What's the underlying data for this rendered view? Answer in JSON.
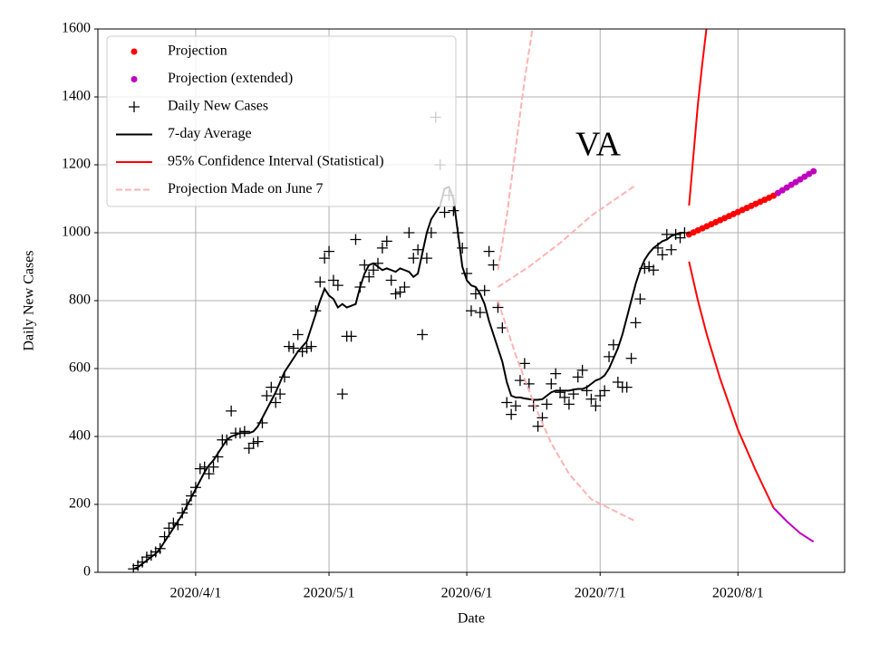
{
  "chart_data": {
    "type": "line",
    "title": "VA",
    "x_label": "Date",
    "y_label": "Daily New Cases",
    "xlim": [
      "2020-03-10",
      "2020-08-25"
    ],
    "ylim": [
      0,
      1600
    ],
    "xticks": [
      {
        "value": "2020-04-01",
        "label": "2020/4/1"
      },
      {
        "value": "2020-05-01",
        "label": "2020/5/1"
      },
      {
        "value": "2020-06-01",
        "label": "2020/6/1"
      },
      {
        "value": "2020-07-01",
        "label": "2020/7/1"
      },
      {
        "value": "2020-08-01",
        "label": "2020/8/1"
      }
    ],
    "yticks": [
      0,
      200,
      400,
      600,
      800,
      1000,
      1200,
      1400,
      1600
    ],
    "grid": true,
    "legend": "upper left",
    "x": [
      "2020-03-18",
      "2020-03-19",
      "2020-03-20",
      "2020-03-21",
      "2020-03-22",
      "2020-03-23",
      "2020-03-24",
      "2020-03-25",
      "2020-03-26",
      "2020-03-27",
      "2020-03-28",
      "2020-03-29",
      "2020-03-30",
      "2020-03-31",
      "2020-04-01",
      "2020-04-02",
      "2020-04-03",
      "2020-04-04",
      "2020-04-05",
      "2020-04-06",
      "2020-04-07",
      "2020-04-08",
      "2020-04-09",
      "2020-04-10",
      "2020-04-11",
      "2020-04-12",
      "2020-04-13",
      "2020-04-14",
      "2020-04-15",
      "2020-04-16",
      "2020-04-17",
      "2020-04-18",
      "2020-04-19",
      "2020-04-20",
      "2020-04-21",
      "2020-04-22",
      "2020-04-23",
      "2020-04-24",
      "2020-04-25",
      "2020-04-26",
      "2020-04-27",
      "2020-04-28",
      "2020-04-29",
      "2020-04-30",
      "2020-05-01",
      "2020-05-02",
      "2020-05-03",
      "2020-05-04",
      "2020-05-05",
      "2020-05-06",
      "2020-05-07",
      "2020-05-08",
      "2020-05-09",
      "2020-05-10",
      "2020-05-11",
      "2020-05-12",
      "2020-05-13",
      "2020-05-14",
      "2020-05-15",
      "2020-05-16",
      "2020-05-17",
      "2020-05-18",
      "2020-05-19",
      "2020-05-20",
      "2020-05-21",
      "2020-05-22",
      "2020-05-23",
      "2020-05-24",
      "2020-05-25",
      "2020-05-26",
      "2020-05-27",
      "2020-05-28",
      "2020-05-29",
      "2020-05-30",
      "2020-05-31",
      "2020-06-01",
      "2020-06-02",
      "2020-06-03",
      "2020-06-04",
      "2020-06-05",
      "2020-06-06",
      "2020-06-07",
      "2020-06-08",
      "2020-06-09",
      "2020-06-10",
      "2020-06-11",
      "2020-06-12",
      "2020-06-13",
      "2020-06-14",
      "2020-06-15",
      "2020-06-16",
      "2020-06-17",
      "2020-06-18",
      "2020-06-19",
      "2020-06-20",
      "2020-06-21",
      "2020-06-22",
      "2020-06-23",
      "2020-06-24",
      "2020-06-25",
      "2020-06-26",
      "2020-06-27",
      "2020-06-28",
      "2020-06-29",
      "2020-06-30",
      "2020-07-01",
      "2020-07-02",
      "2020-07-03",
      "2020-07-04",
      "2020-07-05",
      "2020-07-06",
      "2020-07-07",
      "2020-07-08",
      "2020-07-09",
      "2020-07-10",
      "2020-07-11",
      "2020-07-12",
      "2020-07-13",
      "2020-07-14",
      "2020-07-15",
      "2020-07-16",
      "2020-07-17",
      "2020-07-18",
      "2020-07-19",
      "2020-07-20"
    ],
    "series": [
      {
        "name": "Projection",
        "color": "#ff0000",
        "marker": "dot",
        "x": [
          "2020-07-21",
          "2020-07-22",
          "2020-07-23",
          "2020-07-24",
          "2020-07-25",
          "2020-07-26",
          "2020-07-27",
          "2020-07-28",
          "2020-07-29",
          "2020-07-30",
          "2020-07-31",
          "2020-08-01",
          "2020-08-02",
          "2020-08-03",
          "2020-08-04",
          "2020-08-05",
          "2020-08-06",
          "2020-08-07",
          "2020-08-08",
          "2020-08-09"
        ],
        "values": [
          995,
          1001,
          1007,
          1013,
          1019,
          1025,
          1031,
          1037,
          1043,
          1049,
          1055,
          1061,
          1067,
          1073,
          1079,
          1085,
          1091,
          1097,
          1103,
          1109
        ]
      },
      {
        "name": "Projection (extended)",
        "color": "#bf00bf",
        "marker": "dot",
        "x": [
          "2020-08-10",
          "2020-08-11",
          "2020-08-12",
          "2020-08-13",
          "2020-08-14",
          "2020-08-15",
          "2020-08-16",
          "2020-08-17",
          "2020-08-18"
        ],
        "values": [
          1117,
          1125,
          1133,
          1141,
          1149,
          1157,
          1165,
          1173,
          1181
        ]
      },
      {
        "name": "Daily New Cases",
        "color": "#000000",
        "marker": "plus",
        "values": [
          10,
          20,
          30,
          45,
          50,
          60,
          70,
          105,
          130,
          145,
          140,
          175,
          200,
          225,
          250,
          305,
          310,
          290,
          310,
          340,
          390,
          390,
          475,
          410,
          410,
          415,
          365,
          380,
          385,
          440,
          520,
          545,
          500,
          525,
          575,
          665,
          660,
          700,
          650,
          660,
          665,
          770,
          855,
          925,
          945,
          860,
          845,
          525,
          695,
          695,
          980,
          840,
          905,
          870,
          890,
          910,
          955,
          975,
          860,
          820,
          825,
          840,
          1000,
          925,
          950,
          700,
          925,
          1000,
          1340,
          1200,
          1060,
          1110,
          1065,
          1000,
          955,
          880,
          770,
          820,
          765,
          830,
          945,
          905,
          780,
          720,
          500,
          465,
          490,
          565,
          615,
          555,
          490,
          430,
          455,
          495,
          555,
          585,
          530,
          515,
          495,
          525,
          575,
          595,
          535,
          510,
          490,
          520,
          535,
          635,
          670,
          560,
          545,
          545,
          630,
          735,
          805,
          895,
          900,
          890,
          955,
          935,
          995,
          950,
          995,
          985,
          1000
        ]
      },
      {
        "name": "7-day Average",
        "color": "#000000",
        "marker": "line",
        "values": [
          10,
          15,
          25,
          35,
          45,
          55,
          70,
          90,
          110,
          130,
          150,
          170,
          195,
          220,
          245,
          270,
          295,
          315,
          330,
          350,
          370,
          390,
          400,
          405,
          410,
          410,
          410,
          415,
          430,
          455,
          480,
          505,
          530,
          560,
          590,
          610,
          630,
          650,
          665,
          680,
          720,
          760,
          800,
          835,
          815,
          805,
          780,
          790,
          780,
          785,
          790,
          840,
          880,
          905,
          910,
          900,
          890,
          895,
          890,
          885,
          895,
          890,
          885,
          870,
          880,
          940,
          1000,
          1040,
          1060,
          1080,
          1130,
          1135,
          1100,
          1000,
          900,
          860,
          845,
          840,
          820,
          790,
          740,
          700,
          660,
          620,
          560,
          520,
          515,
          515,
          512,
          510,
          508,
          508,
          510,
          520,
          530,
          535,
          535,
          535,
          535,
          538,
          540,
          540,
          545,
          555,
          565,
          570,
          580,
          600,
          630,
          660,
          700,
          750,
          800,
          850,
          890,
          920,
          940,
          955,
          965,
          975,
          980,
          990,
          995,
          1000,
          1000
        ]
      },
      {
        "name": "95% Confidence Interval (Statistical)",
        "color": "#ff0000",
        "marker": "line",
        "x": [
          "2020-07-21",
          "2020-07-22",
          "2020-07-23",
          "2020-07-24",
          "2020-07-25",
          null,
          "2020-07-21",
          "2020-07-23",
          "2020-07-25",
          "2020-07-28",
          "2020-08-01",
          "2020-08-05",
          "2020-08-09"
        ],
        "values": [
          1080,
          1230,
          1380,
          1500,
          1610,
          null,
          915,
          800,
          700,
          570,
          420,
          300,
          190
        ]
      },
      {
        "color": "#bf00bf",
        "marker": "line",
        "x": [
          "2020-08-09",
          "2020-08-12",
          "2020-08-15",
          "2020-08-18"
        ],
        "values": [
          190,
          150,
          115,
          90
        ]
      },
      {
        "name": "Projection Made on June 7",
        "color": "#ffb3b3",
        "marker": "dashed",
        "x": [
          "2020-06-08",
          "2020-06-10",
          "2020-06-12",
          "2020-06-14",
          "2020-06-16",
          null,
          "2020-06-08",
          "2020-06-15",
          "2020-06-22",
          "2020-06-29",
          "2020-07-09",
          null,
          "2020-06-08",
          "2020-06-12",
          "2020-06-16",
          "2020-06-20",
          "2020-06-24",
          "2020-06-29",
          "2020-07-09"
        ],
        "values": [
          890,
          1050,
          1250,
          1450,
          1620,
          null,
          840,
          900,
          970,
          1050,
          1140,
          null,
          800,
          640,
          500,
          380,
          290,
          215,
          150
        ]
      }
    ]
  }
}
